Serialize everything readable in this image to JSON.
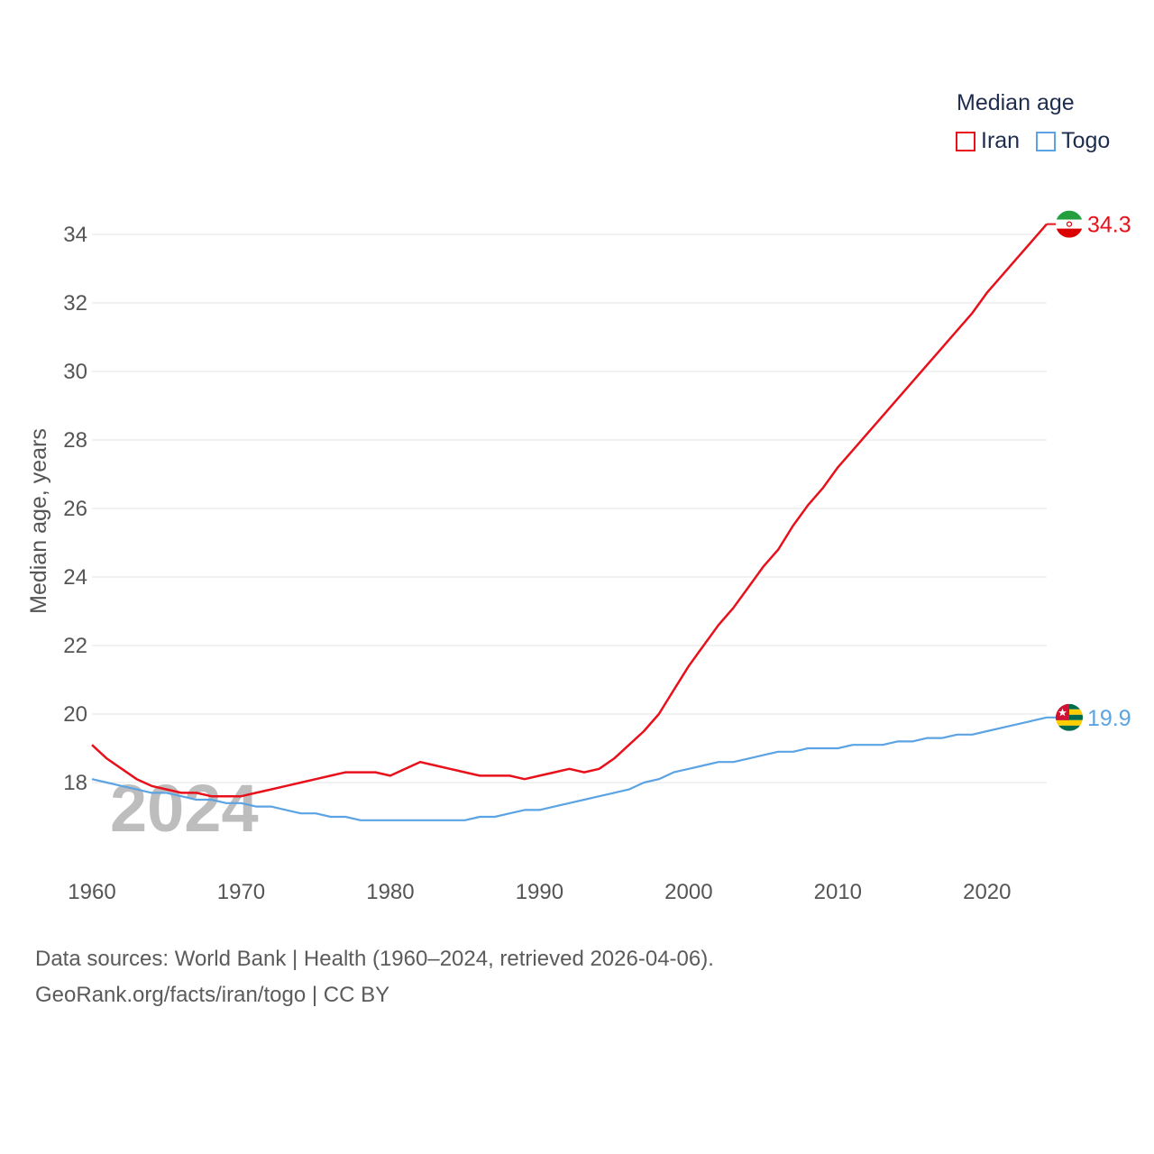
{
  "chart_data": {
    "type": "line",
    "ylabel": "Median age, years",
    "xlim": [
      1960,
      2024
    ],
    "ylim": [
      16,
      35
    ],
    "yticks": [
      18,
      20,
      22,
      24,
      26,
      28,
      30,
      32,
      34
    ],
    "xticks": [
      1960,
      1970,
      1980,
      1990,
      2000,
      2010,
      2020
    ],
    "year_watermark": "2024",
    "legend": {
      "title": "Median age",
      "position": "top-right"
    },
    "series": [
      {
        "name": "Iran",
        "color": "#e8101a",
        "end_label": "34.3",
        "flag": "iran-flag-icon",
        "x": [
          1960,
          1961,
          1962,
          1963,
          1964,
          1965,
          1966,
          1967,
          1968,
          1969,
          1970,
          1971,
          1972,
          1973,
          1974,
          1975,
          1976,
          1977,
          1978,
          1979,
          1980,
          1981,
          1982,
          1983,
          1984,
          1985,
          1986,
          1987,
          1988,
          1989,
          1990,
          1991,
          1992,
          1993,
          1994,
          1995,
          1996,
          1997,
          1998,
          1999,
          2000,
          2001,
          2002,
          2003,
          2004,
          2005,
          2006,
          2007,
          2008,
          2009,
          2010,
          2011,
          2012,
          2013,
          2014,
          2015,
          2016,
          2017,
          2018,
          2019,
          2020,
          2021,
          2022,
          2023,
          2024
        ],
        "values": [
          19.1,
          18.7,
          18.4,
          18.1,
          17.9,
          17.8,
          17.7,
          17.7,
          17.6,
          17.6,
          17.6,
          17.7,
          17.8,
          17.9,
          18.0,
          18.1,
          18.2,
          18.3,
          18.3,
          18.3,
          18.2,
          18.4,
          18.6,
          18.5,
          18.4,
          18.3,
          18.2,
          18.2,
          18.2,
          18.1,
          18.2,
          18.3,
          18.4,
          18.3,
          18.4,
          18.7,
          19.1,
          19.5,
          20.0,
          20.7,
          21.4,
          22.0,
          22.6,
          23.1,
          23.7,
          24.3,
          24.8,
          25.5,
          26.1,
          26.6,
          27.2,
          27.7,
          28.2,
          28.7,
          29.2,
          29.7,
          30.2,
          30.7,
          31.2,
          31.7,
          32.3,
          32.8,
          33.3,
          33.8,
          34.3
        ]
      },
      {
        "name": "Togo",
        "color": "#5ba3e2",
        "end_label": "19.9",
        "flag": "togo-flag-icon",
        "x": [
          1960,
          1961,
          1962,
          1963,
          1964,
          1965,
          1966,
          1967,
          1968,
          1969,
          1970,
          1971,
          1972,
          1973,
          1974,
          1975,
          1976,
          1977,
          1978,
          1979,
          1980,
          1981,
          1982,
          1983,
          1984,
          1985,
          1986,
          1987,
          1988,
          1989,
          1990,
          1991,
          1992,
          1993,
          1994,
          1995,
          1996,
          1997,
          1998,
          1999,
          2000,
          2001,
          2002,
          2003,
          2004,
          2005,
          2006,
          2007,
          2008,
          2009,
          2010,
          2011,
          2012,
          2013,
          2014,
          2015,
          2016,
          2017,
          2018,
          2019,
          2020,
          2021,
          2022,
          2023,
          2024
        ],
        "values": [
          18.1,
          18.0,
          17.9,
          17.8,
          17.7,
          17.7,
          17.6,
          17.5,
          17.5,
          17.4,
          17.4,
          17.3,
          17.3,
          17.2,
          17.1,
          17.1,
          17.0,
          17.0,
          16.9,
          16.9,
          16.9,
          16.9,
          16.9,
          16.9,
          16.9,
          16.9,
          17.0,
          17.0,
          17.1,
          17.2,
          17.2,
          17.3,
          17.4,
          17.5,
          17.6,
          17.7,
          17.8,
          18.0,
          18.1,
          18.3,
          18.4,
          18.5,
          18.6,
          18.6,
          18.7,
          18.8,
          18.9,
          18.9,
          19.0,
          19.0,
          19.0,
          19.1,
          19.1,
          19.1,
          19.2,
          19.2,
          19.3,
          19.3,
          19.4,
          19.4,
          19.5,
          19.6,
          19.7,
          19.8,
          19.9
        ]
      }
    ]
  },
  "sources": {
    "line1": "Data sources: World Bank | Health (1960–2024, retrieved 2026-04-06).",
    "line2": "GeoRank.org/facts/iran/togo | CC BY"
  }
}
